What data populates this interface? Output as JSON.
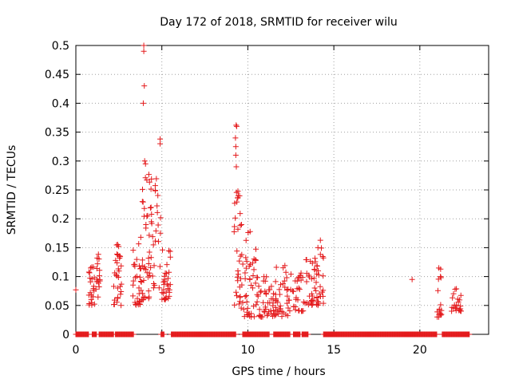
{
  "chart_data": {
    "type": "scatter",
    "title": "Day 172 of 2018, SRMTID for receiver wilu",
    "xlabel": "GPS time / hours",
    "ylabel": "SRMTID / TECUs",
    "xlim": [
      0,
      24
    ],
    "ylim": [
      0,
      0.5
    ],
    "grid": true,
    "marker": "plus",
    "color": "#e41a1c",
    "x_ticks": [
      {
        "value": 0,
        "label": "0"
      },
      {
        "value": 5,
        "label": "5"
      },
      {
        "value": 10,
        "label": "10"
      },
      {
        "value": 15,
        "label": "15"
      },
      {
        "value": 20,
        "label": "20"
      }
    ],
    "y_ticks": [
      {
        "value": 0,
        "label": "0"
      },
      {
        "value": 0.05,
        "label": "0.05"
      },
      {
        "value": 0.1,
        "label": "0.1"
      },
      {
        "value": 0.15,
        "label": "0.15"
      },
      {
        "value": 0.2,
        "label": "0.2"
      },
      {
        "value": 0.25,
        "label": "0.25"
      },
      {
        "value": 0.3,
        "label": "0.3"
      },
      {
        "value": 0.35,
        "label": "0.35"
      },
      {
        "value": 0.4,
        "label": "0.4"
      },
      {
        "value": 0.45,
        "label": "0.45"
      },
      {
        "value": 0.5,
        "label": "0.5"
      }
    ],
    "zero_segments": [
      [
        0.0,
        0.75
      ],
      [
        0.95,
        1.2
      ],
      [
        1.35,
        2.2
      ],
      [
        2.3,
        3.35
      ],
      [
        4.95,
        5.15
      ],
      [
        5.55,
        9.3
      ],
      [
        9.7,
        11.25
      ],
      [
        11.5,
        12.45
      ],
      [
        12.65,
        13.05
      ],
      [
        13.15,
        13.5
      ],
      [
        14.4,
        21.0
      ],
      [
        21.3,
        22.9
      ]
    ],
    "clusters": [
      {
        "x": [
          0.75,
          1.1
        ],
        "y": [
          0.05,
          0.12
        ],
        "n": 24
      },
      {
        "x": [
          1.15,
          1.4
        ],
        "y": [
          0.06,
          0.145
        ],
        "n": 16
      },
      {
        "x": [
          2.2,
          2.65
        ],
        "y": [
          0.05,
          0.165
        ],
        "n": 30
      },
      {
        "x": [
          3.3,
          3.85
        ],
        "y": [
          0.05,
          0.17
        ],
        "n": 32
      },
      {
        "x": [
          3.85,
          4.3
        ],
        "y": [
          0.06,
          0.3
        ],
        "n": 34
      },
      {
        "x": [
          4.3,
          5.0
        ],
        "y": [
          0.08,
          0.27
        ],
        "n": 32
      },
      {
        "x": [
          5.0,
          5.5
        ],
        "y": [
          0.06,
          0.15
        ],
        "n": 32
      },
      {
        "x": [
          9.2,
          9.6
        ],
        "y": [
          0.05,
          0.26
        ],
        "n": 30
      },
      {
        "x": [
          9.6,
          10.5
        ],
        "y": [
          0.03,
          0.19
        ],
        "n": 45
      },
      {
        "x": [
          10.5,
          11.6
        ],
        "y": [
          0.03,
          0.1
        ],
        "n": 45
      },
      {
        "x": [
          11.6,
          12.5
        ],
        "y": [
          0.03,
          0.12
        ],
        "n": 40
      },
      {
        "x": [
          12.5,
          13.3
        ],
        "y": [
          0.04,
          0.11
        ],
        "n": 28
      },
      {
        "x": [
          13.3,
          14.0
        ],
        "y": [
          0.05,
          0.14
        ],
        "n": 32
      },
      {
        "x": [
          14.0,
          14.4
        ],
        "y": [
          0.05,
          0.165
        ],
        "n": 26
      },
      {
        "x": [
          21.0,
          21.3
        ],
        "y": [
          0.03,
          0.115
        ],
        "n": 16
      },
      {
        "x": [
          21.8,
          22.4
        ],
        "y": [
          0.04,
          0.08
        ],
        "n": 22
      }
    ],
    "points": [
      {
        "x": 0.0,
        "y": 0.077
      },
      {
        "x": 3.95,
        "y": 0.5
      },
      {
        "x": 3.95,
        "y": 0.49
      },
      {
        "x": 3.98,
        "y": 0.43
      },
      {
        "x": 3.92,
        "y": 0.4
      },
      {
        "x": 4.0,
        "y": 0.3
      },
      {
        "x": 4.05,
        "y": 0.295
      },
      {
        "x": 4.9,
        "y": 0.338
      },
      {
        "x": 4.9,
        "y": 0.33
      },
      {
        "x": 9.32,
        "y": 0.362
      },
      {
        "x": 9.35,
        "y": 0.36
      },
      {
        "x": 9.28,
        "y": 0.34
      },
      {
        "x": 9.3,
        "y": 0.325
      },
      {
        "x": 9.3,
        "y": 0.31
      },
      {
        "x": 9.33,
        "y": 0.29
      },
      {
        "x": 19.55,
        "y": 0.095
      },
      {
        "x": 21.1,
        "y": 0.03
      }
    ]
  }
}
